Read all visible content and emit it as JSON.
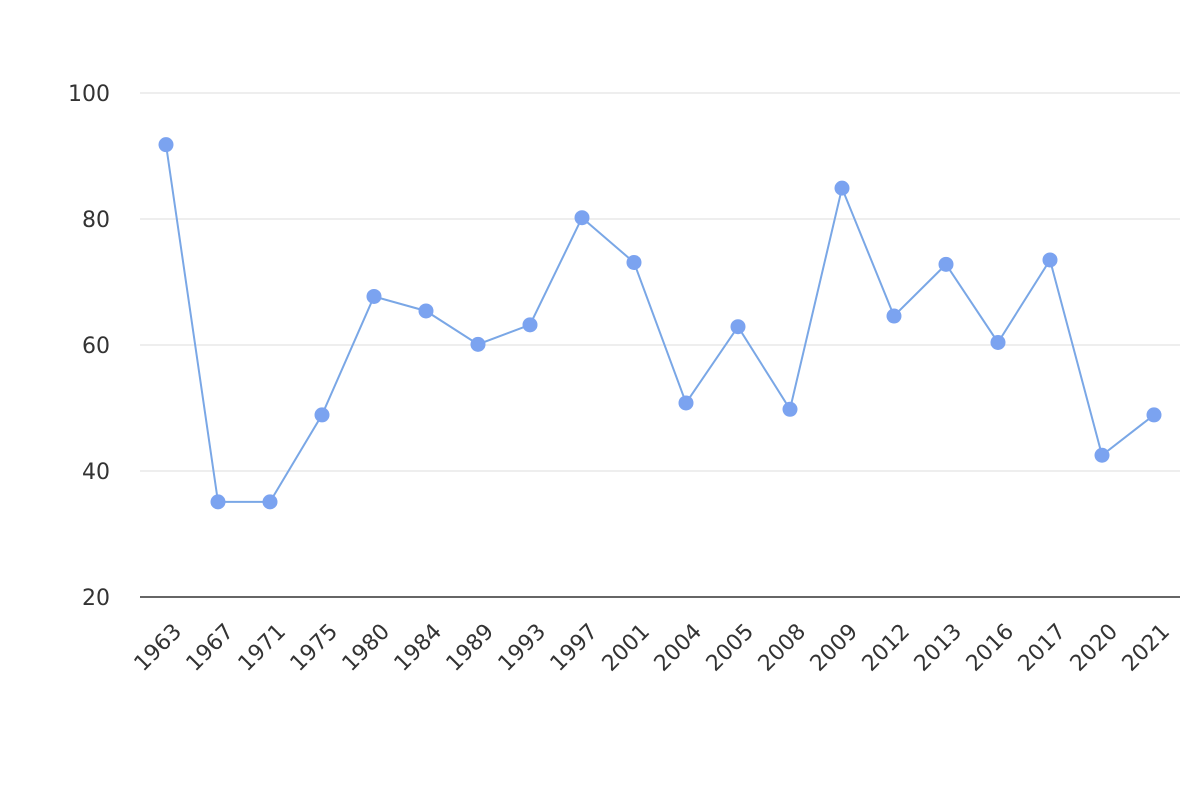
{
  "chart_data": {
    "type": "line",
    "title": "",
    "xlabel": "",
    "ylabel": "",
    "categories": [
      "1963",
      "1967",
      "1971",
      "1975",
      "1980",
      "1984",
      "1989",
      "1993",
      "1997",
      "2001",
      "2004",
      "2005",
      "2008",
      "2009",
      "2012",
      "2013",
      "2016",
      "2017",
      "2020",
      "2021"
    ],
    "series": [
      {
        "values": [
          91.8,
          35.1,
          35.1,
          48.9,
          67.7,
          65.4,
          60.1,
          63.2,
          80.2,
          73.1,
          50.8,
          62.9,
          49.8,
          84.9,
          64.6,
          72.8,
          60.4,
          73.5,
          42.5,
          48.9
        ]
      }
    ],
    "ylim": [
      20,
      100
    ],
    "yticks": [
      20,
      40,
      60,
      80,
      100
    ],
    "grid": true,
    "legend": "none",
    "colors": {
      "series": "#7ba3f0",
      "line": "#7aa7e6",
      "grid": "#dddddd",
      "axis": "#333333"
    }
  }
}
